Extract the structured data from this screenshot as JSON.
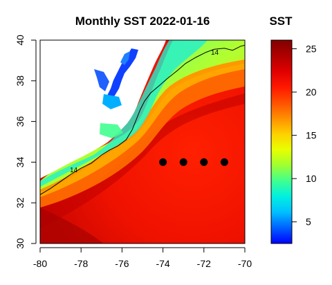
{
  "title": "Monthly SST 2022-01-16",
  "colorbar": {
    "title": "SST",
    "range": [
      2.5,
      26
    ],
    "ticks": [
      5,
      10,
      15,
      20,
      25
    ],
    "colors": [
      "#0000ff",
      "#0060ff",
      "#00c0ff",
      "#00f0e0",
      "#40ff90",
      "#a0ff30",
      "#e8ff00",
      "#ffd000",
      "#ff9000",
      "#ff5000",
      "#ff1800",
      "#e00000",
      "#b00000",
      "#800000"
    ]
  },
  "chart_data": {
    "type": "heatmap",
    "xlim": [
      -80,
      -70
    ],
    "ylim": [
      30,
      40
    ],
    "x_ticks": [
      -80,
      -78,
      -76,
      -74,
      -72,
      -70
    ],
    "y_ticks": [
      30,
      32,
      34,
      36,
      38,
      40
    ],
    "contour": {
      "level": 14,
      "label": "14",
      "lon": [
        -80,
        -79.5,
        -79,
        -78.5,
        -78,
        -77.5,
        -77,
        -76.6,
        -76.2,
        -75.8,
        -75.5,
        -75.3,
        -75.1,
        -74.9,
        -74.6,
        -74.2,
        -73.8,
        -73.3,
        -72.9,
        -72.4,
        -71.9,
        -71.5,
        -71,
        -70.6,
        -70.2,
        -70
      ],
      "lat": [
        32.4,
        32.7,
        33.05,
        33.4,
        33.7,
        33.95,
        34.35,
        34.6,
        34.8,
        35.1,
        35.6,
        36.1,
        36.6,
        37.0,
        37.4,
        37.75,
        38.1,
        38.5,
        38.85,
        39.15,
        39.4,
        39.55,
        39.6,
        39.5,
        39.7,
        39.75
      ]
    },
    "stations": [
      {
        "lon": -74,
        "lat": 34
      },
      {
        "lon": -73,
        "lat": 34
      },
      {
        "lon": -72,
        "lat": 34
      },
      {
        "lon": -71,
        "lat": 34
      }
    ]
  }
}
